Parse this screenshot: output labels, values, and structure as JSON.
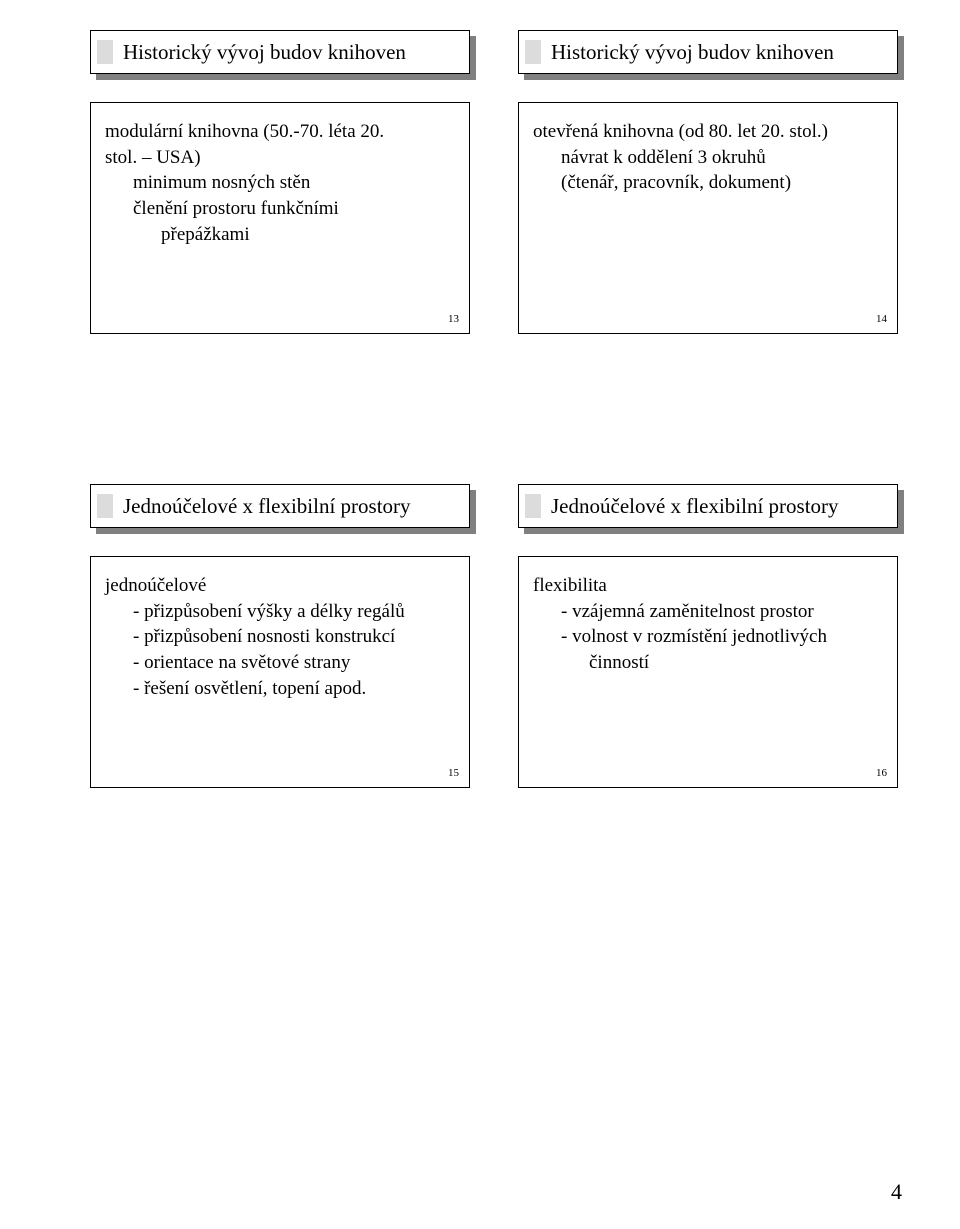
{
  "page_number": "4",
  "slides": [
    {
      "title": "Historický vývoj budov knihoven",
      "slide_num": "13",
      "lines": [
        {
          "text": "modulární knihovna (50.-70. léta 20.",
          "indent": 0
        },
        {
          "text": "stol. – USA)",
          "indent": 0
        },
        {
          "text": "minimum nosných stěn",
          "indent": 1
        },
        {
          "text": "členění prostoru funkčními",
          "indent": 1
        },
        {
          "text": "přepážkami",
          "indent": 2
        }
      ]
    },
    {
      "title": "Historický vývoj budov knihoven",
      "slide_num": "14",
      "lines": [
        {
          "text": "otevřená knihovna (od 80. let 20. stol.)",
          "indent": 0
        },
        {
          "text": "návrat k oddělení 3 okruhů",
          "indent": 1
        },
        {
          "text": "(čtenář, pracovník, dokument)",
          "indent": 1
        }
      ]
    },
    {
      "title": "Jednoúčelové x flexibilní prostory",
      "slide_num": "15",
      "lines": [
        {
          "text": "jednoúčelové",
          "indent": 0
        },
        {
          "text": "- přizpůsobení výšky a délky regálů",
          "indent": 1
        },
        {
          "text": "- přizpůsobení nosnosti konstrukcí",
          "indent": 1
        },
        {
          "text": "- orientace na světové strany",
          "indent": 1
        },
        {
          "text": "- řešení osvětlení, topení apod.",
          "indent": 1
        }
      ]
    },
    {
      "title": "Jednoúčelové x flexibilní prostory",
      "slide_num": "16",
      "lines": [
        {
          "text": "flexibilita",
          "indent": 0
        },
        {
          "text": "- vzájemná zaměnitelnost prostor",
          "indent": 1
        },
        {
          "text": "- volnost v rozmístění jednotlivých",
          "indent": 1
        },
        {
          "text": "činností",
          "indent": 2
        }
      ]
    }
  ]
}
